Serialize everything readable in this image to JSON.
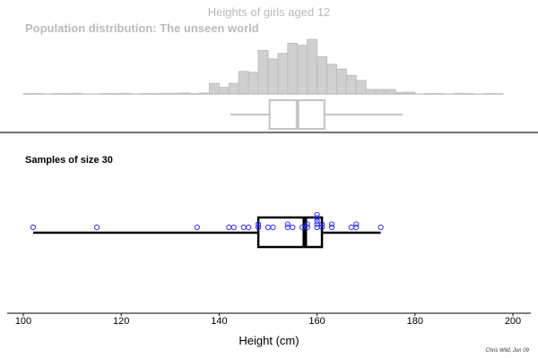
{
  "chart_data": [
    {
      "type": "bar",
      "title": "Heights of girls aged 12",
      "subtitle": "Population distribution: The unseen world",
      "bin_width": 2,
      "bin_starts": [
        100,
        102,
        104,
        106,
        108,
        110,
        112,
        114,
        116,
        118,
        120,
        122,
        124,
        126,
        128,
        130,
        132,
        134,
        136,
        138,
        140,
        142,
        144,
        146,
        148,
        150,
        152,
        154,
        156,
        158,
        160,
        162,
        164,
        166,
        168,
        170,
        172,
        174,
        176,
        178,
        180,
        182,
        184,
        186,
        188,
        190,
        192,
        194,
        196
      ],
      "values": [
        1,
        1,
        0,
        1,
        1,
        2,
        0,
        0,
        1,
        1,
        2,
        0,
        1,
        1,
        2,
        2,
        3,
        1,
        3,
        35,
        22,
        35,
        75,
        72,
        145,
        117,
        135,
        169,
        162,
        182,
        124,
        99,
        83,
        62,
        45,
        15,
        15,
        15,
        5,
        6,
        0,
        1,
        1,
        0,
        2,
        1,
        0,
        1,
        1
      ],
      "boxplot": {
        "min": 142.3,
        "q1": 150.3,
        "median": 156,
        "q3": 161.5,
        "max": 177.5
      },
      "color": "#c8c8c8"
    },
    {
      "type": "scatter",
      "title": "Samples of size 30",
      "points": [
        102,
        115,
        135.5,
        142,
        143,
        145,
        146,
        148,
        148,
        150,
        151,
        154,
        154,
        155,
        157,
        158,
        158,
        160,
        160,
        160,
        160,
        160,
        161,
        161,
        163,
        163,
        167,
        168,
        168,
        173
      ],
      "boxplot": {
        "min": 102,
        "q1": 148,
        "median": 157.5,
        "q3": 161,
        "max": 173
      },
      "point_color": "#3333ff"
    }
  ],
  "axis": {
    "xlabel": "Height (cm)",
    "xlim": [
      100,
      200
    ],
    "ticks": [
      "100",
      "120",
      "140",
      "160",
      "180",
      "200"
    ]
  },
  "signature": "Chris Wild, Jun 09"
}
